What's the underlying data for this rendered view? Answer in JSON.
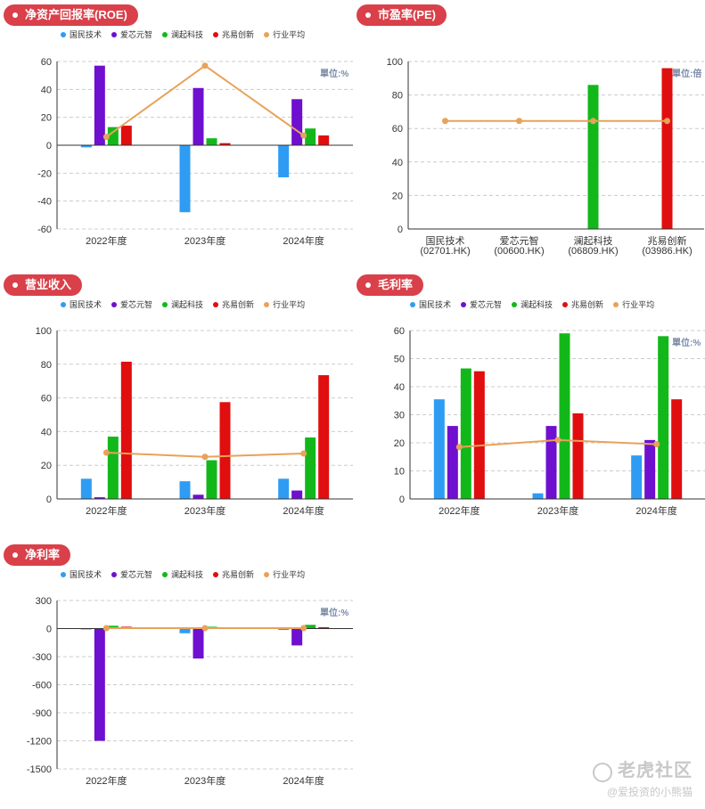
{
  "colors": {
    "accent": "#d9404a",
    "series": [
      "#2f9cf4",
      "#6f0fcf",
      "#12b81a",
      "#e00e0e",
      "#e8a25a"
    ],
    "axis": "#333333",
    "grid": "#cccccc"
  },
  "legend": [
    "国民技术",
    "爱芯元智",
    "澜起科技",
    "兆易创新",
    "行业平均"
  ],
  "watermark": {
    "brand": "老虎社区",
    "author": "@爱投资的小熊猫"
  },
  "chart_data": [
    {
      "id": "roe",
      "title": "净资产回报率(ROE)",
      "type": "bar",
      "unit": "單位:%",
      "categories": [
        "2022年度",
        "2023年度",
        "2024年度"
      ],
      "ylim": [
        -60,
        60
      ],
      "yticks": [
        -60,
        -40,
        -20,
        0,
        20,
        40,
        60
      ],
      "grid": true,
      "series": [
        {
          "name": "国民技术",
          "values": [
            -1.5,
            -48,
            -23
          ]
        },
        {
          "name": "爱芯元智",
          "values": [
            57,
            41,
            33
          ]
        },
        {
          "name": "澜起科技",
          "values": [
            13,
            5,
            12
          ]
        },
        {
          "name": "兆易创新",
          "values": [
            14,
            1.5,
            7
          ]
        }
      ],
      "line": {
        "name": "行业平均",
        "values": [
          6,
          57,
          7
        ]
      }
    },
    {
      "id": "pe",
      "title": "市盈率(PE)",
      "type": "bar",
      "unit": "單位:倍",
      "categories": [
        "国民技术\n(02701.HK)",
        "爱芯元智\n(00600.HK)",
        "澜起科技\n(06809.HK)",
        "兆易创新\n(03986.HK)"
      ],
      "ylim": [
        0,
        100
      ],
      "yticks": [
        0,
        20,
        40,
        60,
        80,
        100
      ],
      "grid": true,
      "bars": [
        {
          "name": "国民技术",
          "value": null
        },
        {
          "name": "爱芯元智",
          "value": null
        },
        {
          "name": "澜起科技",
          "value": 86
        },
        {
          "name": "兆易创新",
          "value": 96
        }
      ],
      "line": {
        "name": "行业平均",
        "values": [
          64.5,
          64.5,
          64.5,
          64.5
        ]
      }
    },
    {
      "id": "revenue",
      "title": "营业收入",
      "type": "bar",
      "unit": "",
      "categories": [
        "2022年度",
        "2023年度",
        "2024年度"
      ],
      "ylim": [
        0,
        100
      ],
      "yticks": [
        0,
        20,
        40,
        60,
        80,
        100
      ],
      "grid": true,
      "series": [
        {
          "name": "国民技术",
          "values": [
            12,
            10.5,
            12
          ]
        },
        {
          "name": "爱芯元智",
          "values": [
            1,
            2.5,
            5
          ]
        },
        {
          "name": "澜起科技",
          "values": [
            37,
            23,
            36.5
          ]
        },
        {
          "name": "兆易创新",
          "values": [
            81.5,
            57.5,
            73.5
          ]
        }
      ],
      "line": {
        "name": "行业平均",
        "values": [
          27.5,
          25,
          27
        ]
      }
    },
    {
      "id": "gross_margin",
      "title": "毛利率",
      "type": "bar",
      "unit": "單位:%",
      "categories": [
        "2022年度",
        "2023年度",
        "2024年度"
      ],
      "ylim": [
        0,
        60
      ],
      "yticks": [
        0,
        10,
        20,
        30,
        40,
        50,
        60
      ],
      "grid": true,
      "series": [
        {
          "name": "国民技术",
          "values": [
            35.5,
            2,
            15.5
          ]
        },
        {
          "name": "爱芯元智",
          "values": [
            26,
            26,
            21
          ]
        },
        {
          "name": "澜起科技",
          "values": [
            46.5,
            59,
            58
          ]
        },
        {
          "name": "兆易创新",
          "values": [
            45.5,
            30.5,
            35.5
          ]
        }
      ],
      "line": {
        "name": "行业平均",
        "values": [
          18.5,
          21,
          19.5
        ]
      }
    },
    {
      "id": "net_margin",
      "title": "净利率",
      "type": "bar",
      "unit": "單位:%",
      "categories": [
        "2022年度",
        "2023年度",
        "2024年度"
      ],
      "ylim": [
        -1500,
        300
      ],
      "yticks": [
        -1500,
        -1200,
        -900,
        -600,
        -300,
        0,
        300
      ],
      "grid": true,
      "series": [
        {
          "name": "国民技术",
          "values": [
            -3,
            -50,
            -15
          ]
        },
        {
          "name": "爱芯元智",
          "values": [
            -1200,
            -320,
            -180
          ]
        },
        {
          "name": "澜起科技",
          "values": [
            30,
            20,
            40
          ]
        },
        {
          "name": "兆易创新",
          "values": [
            20,
            5,
            15
          ]
        }
      ],
      "line": {
        "name": "行业平均",
        "values": [
          5,
          5,
          5
        ]
      }
    }
  ]
}
